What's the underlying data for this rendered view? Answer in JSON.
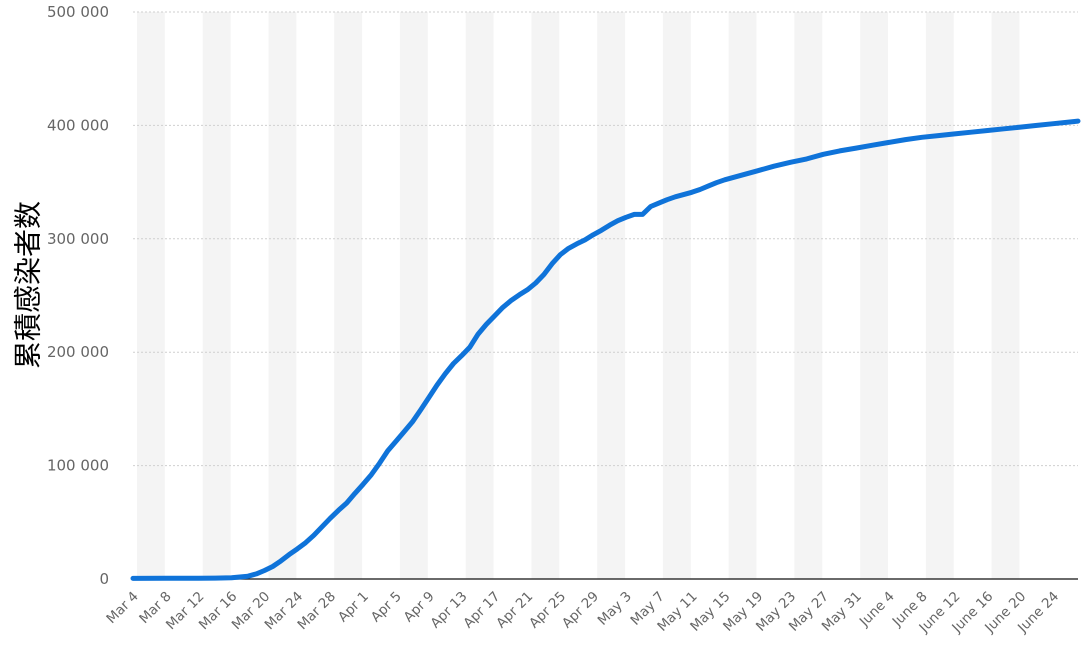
{
  "chart_data": {
    "type": "line",
    "title": "",
    "xlabel": "",
    "ylabel": "累積感染者数",
    "ylim": [
      0,
      500000
    ],
    "y_ticks": [
      0,
      100000,
      200000,
      300000,
      400000,
      500000
    ],
    "y_tick_labels": [
      "0",
      "100 000",
      "200 000",
      "300 000",
      "400 000",
      "500 000"
    ],
    "grid": true,
    "legend": "none",
    "line_color": "#0f73d9",
    "band_color": "#f4f4f4",
    "x_tick_labels": [
      "Mar 4",
      "Mar 8",
      "Mar 12",
      "Mar 16",
      "Mar 20",
      "Mar 24",
      "Mar 28",
      "Apr 1",
      "Apr 5",
      "Apr 9",
      "Apr 13",
      "Apr 17",
      "Apr 21",
      "Apr 25",
      "Apr 29",
      "May 3",
      "May 7",
      "May 11",
      "May 15",
      "May 19",
      "May 23",
      "May 27",
      "May 31",
      "June 4",
      "June 8",
      "June 12",
      "June 16",
      "June 20",
      "June 24"
    ],
    "series": [
      {
        "points": [
          [
            "Mar 4",
            500
          ],
          [
            "Mar 8",
            600
          ],
          [
            "Mar 12",
            700
          ],
          [
            "Mar 14",
            800
          ],
          [
            "Mar 16",
            1100
          ],
          [
            "Mar 18",
            2500
          ],
          [
            "Mar 19",
            4500
          ],
          [
            "Mar 20",
            7500
          ],
          [
            "Mar 21",
            11000
          ],
          [
            "Mar 22",
            16000
          ],
          [
            "Mar 23",
            21500
          ],
          [
            "Mar 24",
            26500
          ],
          [
            "Mar 25",
            32000
          ],
          [
            "Mar 26",
            38500
          ],
          [
            "Mar 27",
            46000
          ],
          [
            "Mar 28",
            53500
          ],
          [
            "Mar 29",
            60500
          ],
          [
            "Mar 30",
            67000
          ],
          [
            "Mar 31",
            75500
          ],
          [
            "Apr 1",
            83500
          ],
          [
            "Apr 2",
            92000
          ],
          [
            "Apr 3",
            102000
          ],
          [
            "Apr 4",
            113000
          ],
          [
            "Apr 5",
            121500
          ],
          [
            "Apr 6",
            130000
          ],
          [
            "Apr 7",
            138500
          ],
          [
            "Apr 8",
            149000
          ],
          [
            "Apr 9",
            160000
          ],
          [
            "Apr 10",
            171000
          ],
          [
            "Apr 11",
            181000
          ],
          [
            "Apr 12",
            190000
          ],
          [
            "Apr 13",
            197000
          ],
          [
            "Apr 14",
            204500
          ],
          [
            "Apr 15",
            216000
          ],
          [
            "Apr 16",
            224500
          ],
          [
            "Apr 17",
            232000
          ],
          [
            "Apr 18",
            239500
          ],
          [
            "Apr 19",
            245500
          ],
          [
            "Apr 20",
            250500
          ],
          [
            "Apr 21",
            255000
          ],
          [
            "Apr 22",
            261000
          ],
          [
            "Apr 23",
            268500
          ],
          [
            "Apr 24",
            278000
          ],
          [
            "Apr 25",
            286000
          ],
          [
            "Apr 26",
            291500
          ],
          [
            "Apr 27",
            295500
          ],
          [
            "Apr 28",
            299000
          ],
          [
            "Apr 29",
            303500
          ],
          [
            "Apr 30",
            307500
          ],
          [
            "May 1",
            312000
          ],
          [
            "May 2",
            316000
          ],
          [
            "May 3",
            319000
          ],
          [
            "May 4",
            321500
          ],
          [
            "May 5",
            321500
          ],
          [
            "May 6",
            328500
          ],
          [
            "May 7",
            331500
          ],
          [
            "May 8",
            334500
          ],
          [
            "May 9",
            337000
          ],
          [
            "May 10",
            339000
          ],
          [
            "May 11",
            341000
          ],
          [
            "May 12",
            343500
          ],
          [
            "May 13",
            346500
          ],
          [
            "May 14",
            349500
          ],
          [
            "May 15",
            352000
          ],
          [
            "May 17",
            356000
          ],
          [
            "May 19",
            360000
          ],
          [
            "May 21",
            364000
          ],
          [
            "May 23",
            367500
          ],
          [
            "May 25",
            370500
          ],
          [
            "May 27",
            374500
          ],
          [
            "May 29",
            377500
          ],
          [
            "May 31",
            380000
          ],
          [
            "June 2",
            382500
          ],
          [
            "June 4",
            385000
          ],
          [
            "June 6",
            387500
          ],
          [
            "June 8",
            389500
          ],
          [
            "June 10",
            391000
          ],
          [
            "June 12",
            392500
          ],
          [
            "June 14",
            394000
          ],
          [
            "June 16",
            395500
          ],
          [
            "June 18",
            397000
          ],
          [
            "June 20",
            398500
          ],
          [
            "June 22",
            400000
          ],
          [
            "June 24",
            401500
          ],
          [
            "June 26",
            403000
          ],
          [
            "June 27",
            403800
          ]
        ]
      }
    ]
  }
}
